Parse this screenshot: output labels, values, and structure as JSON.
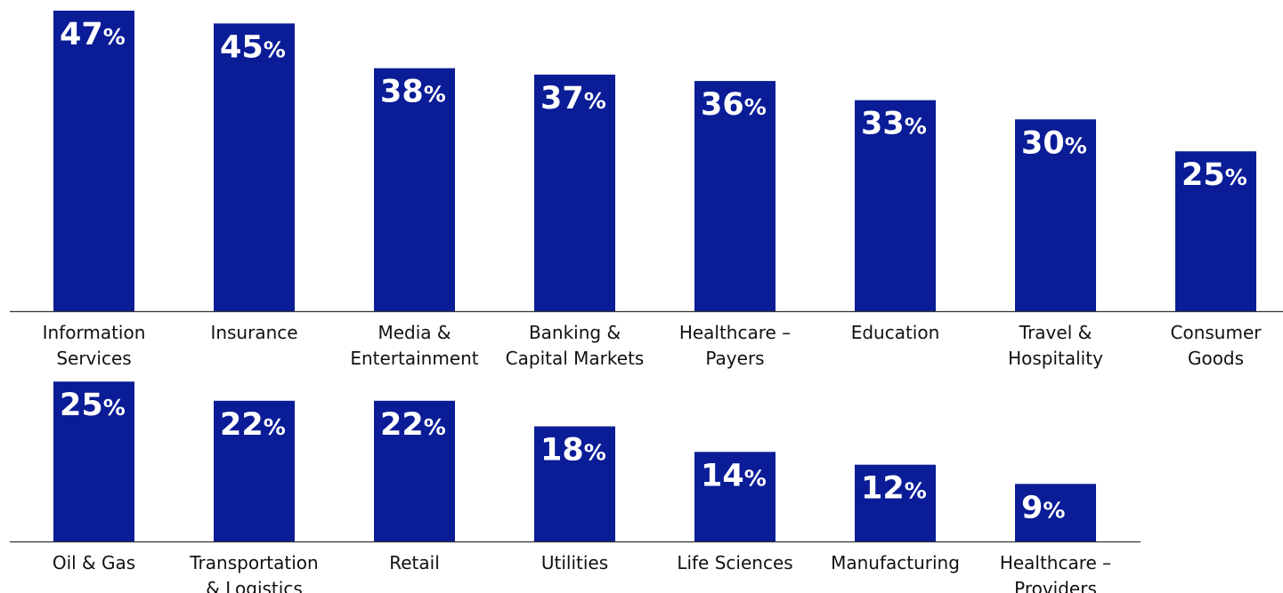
{
  "colors": {
    "bar": "#0a1c96",
    "label_inside": "#ffffff",
    "label_outside": "#0a1c96",
    "axis": "#333333"
  },
  "chart_data": [
    {
      "type": "bar",
      "unit": "%",
      "categories": [
        [
          "Information",
          "Services"
        ],
        [
          "Insurance"
        ],
        [
          "Media &",
          "Entertainment"
        ],
        [
          "Banking &",
          "Capital Markets"
        ],
        [
          "Healthcare –",
          "Payers"
        ],
        [
          "Education"
        ],
        [
          "Travel &",
          "Hospitality"
        ],
        [
          "Consumer",
          "Goods"
        ]
      ],
      "values": [
        47,
        45,
        38,
        37,
        36,
        33,
        30,
        25
      ],
      "ylim": [
        0,
        47
      ]
    },
    {
      "type": "bar",
      "unit": "%",
      "categories": [
        [
          "Oil & Gas"
        ],
        [
          "Transportation",
          "& Logistics"
        ],
        [
          "Retail"
        ],
        [
          "Utilities"
        ],
        [
          "Life Sciences"
        ],
        [
          "Manufacturing"
        ],
        [
          "Healthcare –",
          "Providers"
        ]
      ],
      "values": [
        25,
        22,
        22,
        18,
        14,
        12,
        9
      ],
      "ylim": [
        0,
        47
      ]
    }
  ]
}
